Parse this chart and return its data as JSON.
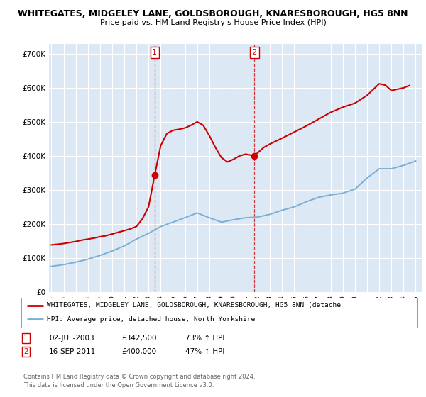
{
  "title": "WHITEGATES, MIDGELEY LANE, GOLDSBOROUGH, KNARESBOROUGH, HG5 8NN",
  "subtitle": "Price paid vs. HM Land Registry's House Price Index (HPI)",
  "ylabel_ticks": [
    "£0",
    "£100K",
    "£200K",
    "£300K",
    "£400K",
    "£500K",
    "£600K",
    "£700K"
  ],
  "ytick_values": [
    0,
    100000,
    200000,
    300000,
    400000,
    500000,
    600000,
    700000
  ],
  "ylim": [
    0,
    730000
  ],
  "xlim_start": 1994.8,
  "xlim_end": 2025.5,
  "plot_bg_color": "#dce9f5",
  "transaction1": {
    "date_num": 2003.5,
    "price": 342500
  },
  "transaction2": {
    "date_num": 2011.71,
    "price": 400000
  },
  "legend_label_red": "WHITEGATES, MIDGELEY LANE, GOLDSBOROUGH, KNARESBOROUGH, HG5 8NN (detache",
  "legend_label_blue": "HPI: Average price, detached house, North Yorkshire",
  "footer_line1": "Contains HM Land Registry data © Crown copyright and database right 2024.",
  "footer_line2": "This data is licensed under the Open Government Licence v3.0.",
  "red_color": "#cc0000",
  "blue_color": "#7bafd4",
  "years_x": [
    1995,
    1996,
    1997,
    1998,
    1999,
    2000,
    2001,
    2002,
    2003,
    2004,
    2005,
    2006,
    2007,
    2008,
    2009,
    2010,
    2011,
    2012,
    2013,
    2014,
    2015,
    2016,
    2017,
    2018,
    2019,
    2020,
    2021,
    2022,
    2023,
    2024,
    2025
  ],
  "hpi_y": [
    75000,
    80000,
    87000,
    96000,
    107000,
    120000,
    135000,
    155000,
    172000,
    192000,
    205000,
    218000,
    232000,
    218000,
    205000,
    212000,
    218000,
    220000,
    228000,
    240000,
    250000,
    265000,
    278000,
    285000,
    290000,
    302000,
    335000,
    362000,
    362000,
    372000,
    385000
  ],
  "price_paid_x": [
    1995.0,
    1995.5,
    1996.0,
    1996.5,
    1997.0,
    1997.5,
    1998.0,
    1998.5,
    1999.0,
    1999.5,
    2000.0,
    2000.5,
    2001.0,
    2001.5,
    2002.0,
    2002.5,
    2003.0,
    2003.5,
    2004.0,
    2004.5,
    2005.0,
    2005.5,
    2006.0,
    2006.5,
    2007.0,
    2007.5,
    2008.0,
    2008.5,
    2009.0,
    2009.5,
    2010.0,
    2010.5,
    2011.0,
    2011.71,
    2012.5,
    2013.0,
    2014.0,
    2015.0,
    2016.0,
    2017.0,
    2018.0,
    2019.0,
    2020.0,
    2021.0,
    2022.0,
    2022.5,
    2023.0,
    2023.5,
    2024.0,
    2024.5
  ],
  "price_paid_y": [
    138000,
    140000,
    142000,
    145000,
    148000,
    152000,
    155000,
    158000,
    162000,
    165000,
    170000,
    175000,
    180000,
    185000,
    192000,
    215000,
    250000,
    342500,
    430000,
    465000,
    475000,
    478000,
    482000,
    490000,
    500000,
    490000,
    460000,
    425000,
    395000,
    382000,
    390000,
    400000,
    405000,
    400000,
    425000,
    435000,
    452000,
    470000,
    488000,
    508000,
    528000,
    543000,
    555000,
    578000,
    612000,
    608000,
    592000,
    596000,
    600000,
    607000
  ]
}
